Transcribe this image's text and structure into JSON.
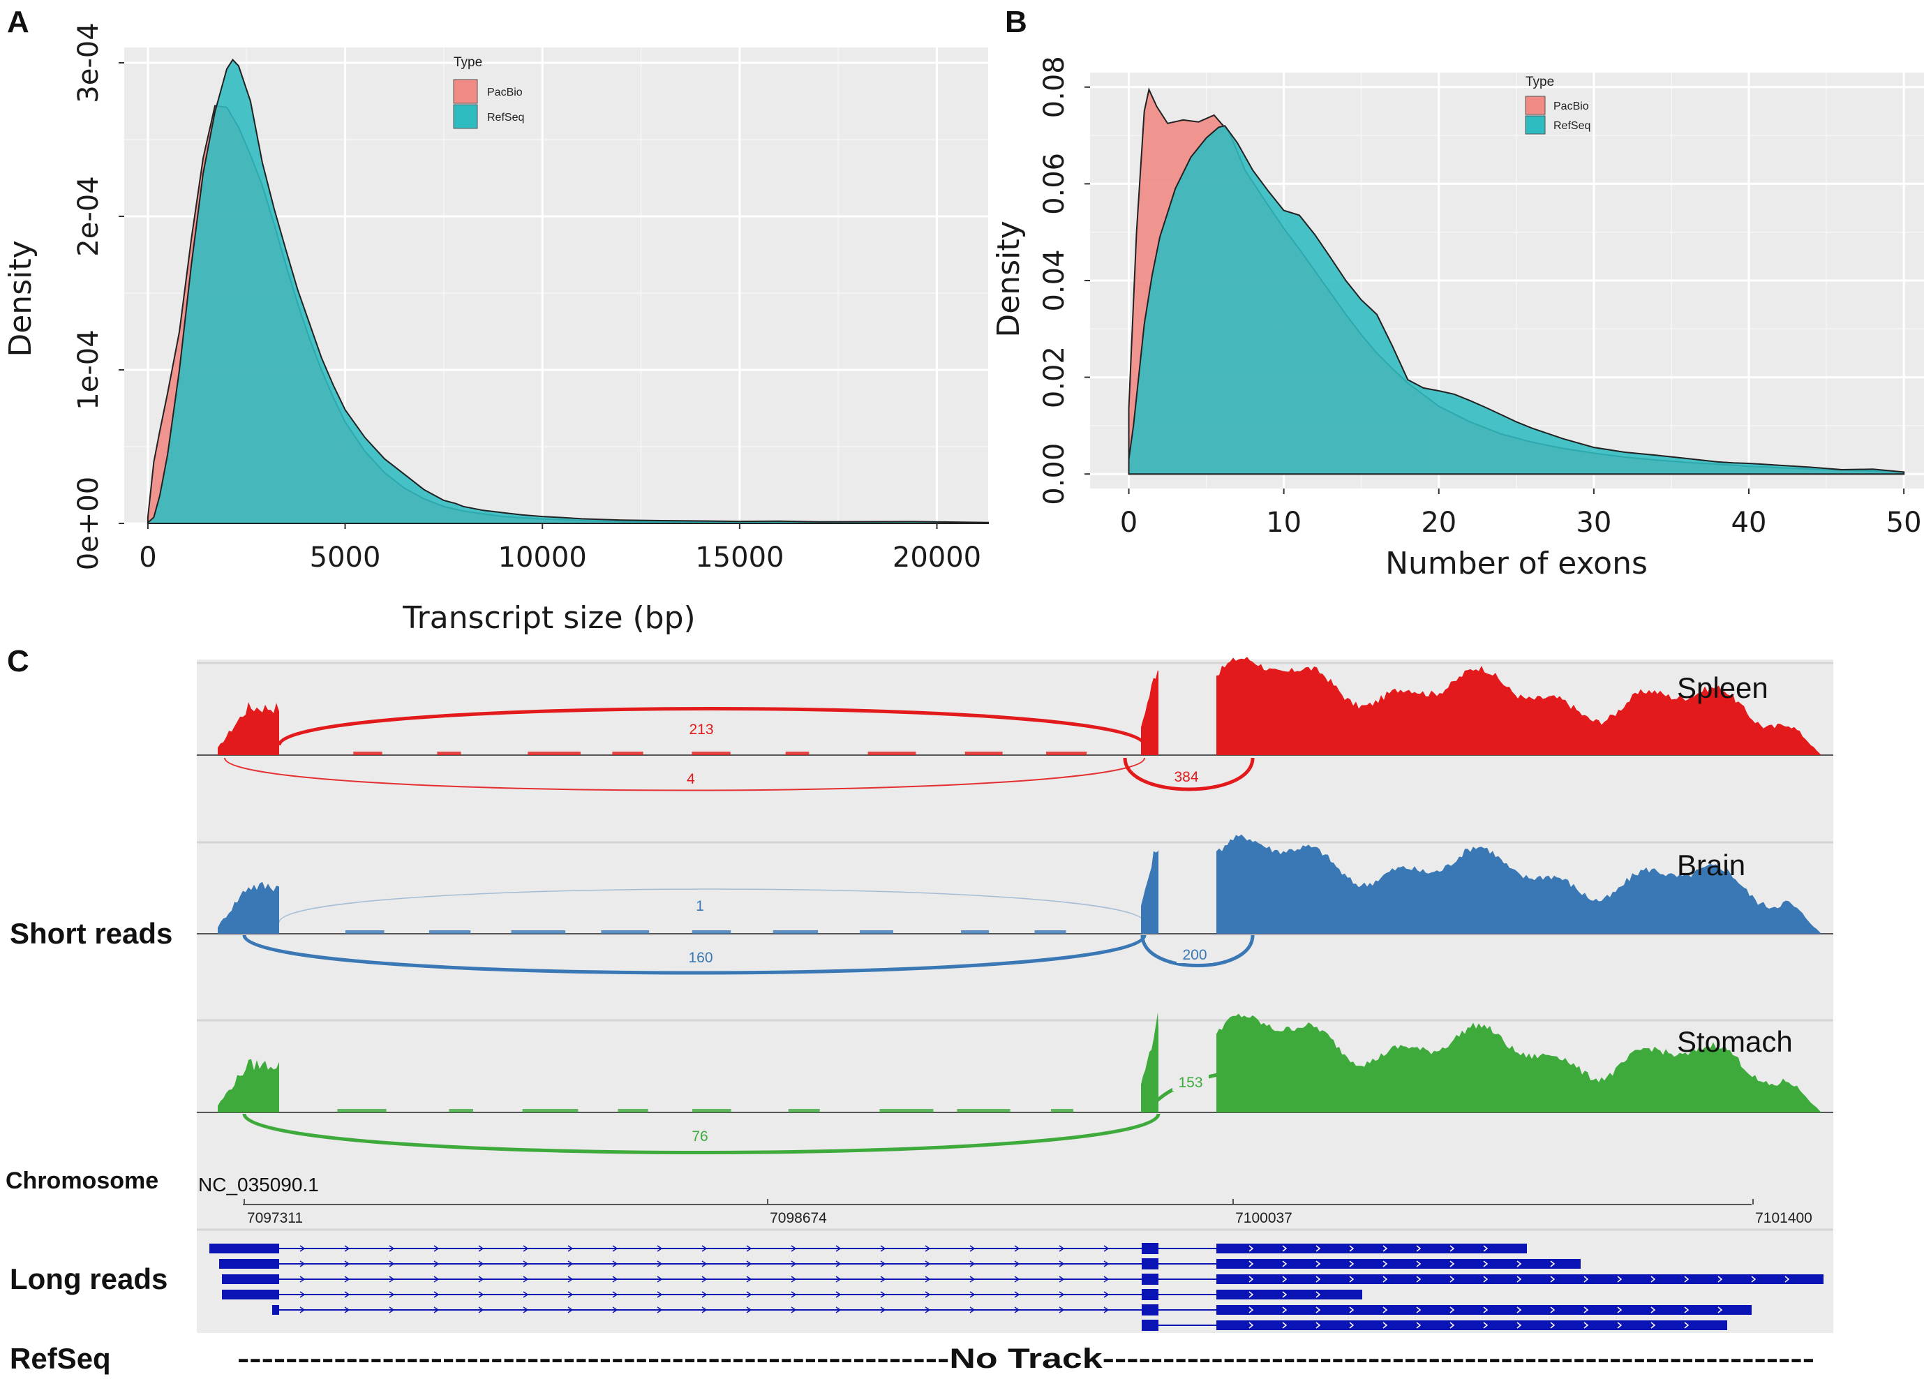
{
  "colors": {
    "pacbio": "#f08b85",
    "refseq": "#2fbcc1",
    "overlap": "#3aa7a7",
    "panel_bg": "#ebebeb",
    "grid": "#ffffff",
    "spleen": "#e31a1c",
    "brain": "#3a78b5",
    "stomach": "#3faa3c",
    "long_read": "#0a14b4"
  },
  "panels": {
    "a": {
      "letter": "A"
    },
    "b": {
      "letter": "B"
    },
    "c": {
      "letter": "C"
    }
  },
  "chart_data": [
    {
      "id": "A",
      "type": "area",
      "title": "",
      "xlabel": "Transcript size (bp)",
      "ylabel": "Density",
      "xlim": [
        -600,
        21300
      ],
      "ylim": [
        0,
        0.00031
      ],
      "x_ticks": [
        0,
        5000,
        10000,
        15000,
        20000
      ],
      "x_tick_labels": [
        "0",
        "5000",
        "10000",
        "15000",
        "20000"
      ],
      "y_ticks": [
        0,
        0.0001,
        0.0002,
        0.0003
      ],
      "y_tick_labels": [
        "0e+00",
        "1e-04",
        "2e-04",
        "3e-04"
      ],
      "legend": {
        "title": "Type",
        "entries": [
          "PacBio",
          "RefSeq"
        ],
        "position": "top-center"
      },
      "series": [
        {
          "name": "PacBio",
          "x": [
            0,
            150,
            300,
            500,
            800,
            1100,
            1400,
            1700,
            2000,
            2300,
            2600,
            2900,
            3200,
            3500,
            3800,
            4100,
            4400,
            4700,
            5000,
            5500,
            6000,
            6500,
            7000,
            7500,
            8000,
            9000,
            10000,
            11000,
            12000,
            13000,
            15000,
            17000,
            19000,
            21300
          ],
          "values": [
            4e-06,
            4e-05,
            6e-05,
            8.5e-05,
            0.000125,
            0.000185,
            0.000238,
            0.000272,
            0.000271,
            0.000258,
            0.00024,
            0.00022,
            0.000195,
            0.000168,
            0.000143,
            0.00012,
            0.0001,
            8.2e-05,
            6.6e-05,
            4.7e-05,
            3.3e-05,
            2.3e-05,
            1.6e-05,
            1.1e-05,
            8e-06,
            4.5e-06,
            2.8e-06,
            1.8e-06,
            1.2e-06,
            9e-07,
            6e-07,
            4e-07,
            3e-07,
            2e-07
          ]
        },
        {
          "name": "RefSeq",
          "x": [
            0,
            150,
            300,
            500,
            800,
            1100,
            1400,
            1700,
            2000,
            2150,
            2300,
            2600,
            2900,
            3200,
            3500,
            3800,
            4100,
            4400,
            4700,
            5000,
            5500,
            6000,
            6500,
            7000,
            7500,
            7800,
            8000,
            8500,
            9000,
            9500,
            10000,
            10500,
            11000,
            12000,
            13000,
            15000,
            16000,
            17000,
            19400,
            21300
          ],
          "values": [
            5e-07,
            4e-06,
            1.8e-05,
            4.5e-05,
            0.0001,
            0.000168,
            0.000228,
            0.000268,
            0.000296,
            0.000302,
            0.000298,
            0.000275,
            0.000235,
            0.000205,
            0.000178,
            0.000152,
            0.00013,
            0.000108,
            9e-05,
            7.4e-05,
            5.6e-05,
            4.2e-05,
            3.2e-05,
            2.2e-05,
            1.5e-05,
            1.3e-05,
            1.1e-05,
            8.5e-06,
            7e-06,
            5.5e-06,
            4.5e-06,
            3.8e-06,
            3e-06,
            2.2e-06,
            1.8e-06,
            1.3e-06,
            1.5e-06,
            1e-06,
            1.2e-06,
            6e-07
          ]
        }
      ]
    },
    {
      "id": "B",
      "type": "area",
      "title": "",
      "xlabel": "Number of exons",
      "ylabel": "Density",
      "xlim": [
        -2.5,
        51.3
      ],
      "ylim": [
        -0.003,
        0.083
      ],
      "x_ticks": [
        0,
        10,
        20,
        30,
        40,
        50
      ],
      "x_tick_labels": [
        "0",
        "10",
        "20",
        "30",
        "40",
        "50"
      ],
      "y_ticks": [
        0,
        0.02,
        0.04,
        0.06,
        0.08
      ],
      "y_tick_labels": [
        "0.00",
        "0.02",
        "0.04",
        "0.06",
        "0.08"
      ],
      "legend": {
        "title": "Type",
        "entries": [
          "PacBio",
          "RefSeq"
        ],
        "position": "top-center"
      },
      "series": [
        {
          "name": "PacBio",
          "x": [
            0,
            0.5,
            1,
            1.3,
            1.8,
            2.5,
            3.5,
            4.5,
            5.5,
            6.5,
            7.5,
            9,
            10,
            11,
            12,
            13,
            14,
            15,
            16,
            17,
            18,
            20,
            22,
            24,
            26,
            28,
            30,
            32,
            34,
            36,
            38,
            40,
            42,
            44,
            46,
            48,
            50
          ],
          "values": [
            0.0135,
            0.05,
            0.075,
            0.0795,
            0.076,
            0.0725,
            0.0732,
            0.0728,
            0.0742,
            0.0705,
            0.0628,
            0.0555,
            0.0508,
            0.0465,
            0.042,
            0.0375,
            0.033,
            0.0288,
            0.025,
            0.0218,
            0.0188,
            0.014,
            0.0108,
            0.0083,
            0.0066,
            0.0053,
            0.0043,
            0.0035,
            0.0029,
            0.0024,
            0.002,
            0.0016,
            0.0013,
            0.001,
            0.0008,
            0.0006,
            0.0004
          ]
        },
        {
          "name": "RefSeq",
          "x": [
            0,
            0.3,
            0.7,
            1,
            1.5,
            2,
            3,
            4,
            5,
            5.8,
            6.2,
            7,
            8,
            9,
            10,
            11,
            12,
            13,
            14,
            15,
            16,
            17,
            18,
            19,
            20,
            21,
            22,
            23,
            24,
            25,
            26,
            28,
            30,
            32,
            34,
            36,
            38,
            39,
            40,
            42,
            44,
            46,
            48,
            50
          ],
          "values": [
            0.003,
            0.01,
            0.022,
            0.031,
            0.041,
            0.049,
            0.059,
            0.0655,
            0.0695,
            0.0717,
            0.072,
            0.0685,
            0.0628,
            0.0585,
            0.0545,
            0.0535,
            0.0495,
            0.0448,
            0.04,
            0.036,
            0.033,
            0.0265,
            0.0195,
            0.0178,
            0.0172,
            0.0165,
            0.0152,
            0.0138,
            0.0123,
            0.0108,
            0.0095,
            0.0073,
            0.0055,
            0.0045,
            0.0039,
            0.0032,
            0.0025,
            0.0023,
            0.0022,
            0.0018,
            0.0014,
            0.0009,
            0.001,
            0.0004
          ]
        }
      ]
    }
  ],
  "sashimi": {
    "row_label_short": "Short reads",
    "row_label_long": "Long reads",
    "row_label_refseq": "RefSeq",
    "chromosome_label": "Chromosome",
    "chromosome_name": "NC_035090.1",
    "coordinates": [
      "7097311",
      "7098674",
      "7100037",
      "7101400"
    ],
    "no_track_text": "-----------------------------------------------------------No Track-----------------------------------------------------------",
    "tracks": [
      {
        "name": "Spleen",
        "junctions": [
          "213",
          "4",
          "384"
        ]
      },
      {
        "name": "Brain",
        "junctions": [
          "1",
          "160",
          "200"
        ]
      },
      {
        "name": "Stomach",
        "junctions": [
          "153",
          "76"
        ]
      }
    ],
    "long_read_count": 6
  }
}
